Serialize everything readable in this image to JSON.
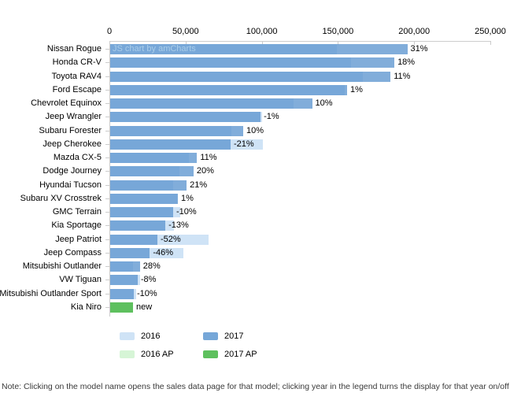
{
  "watermark": "JS chart by amCharts",
  "note": "Note: Clicking on the model name opens the sales data page for that model; clicking year in the legend turns the display for that year on/off",
  "colors": {
    "y2016": "#cfe3f6",
    "y2017": "#76a7d8",
    "y2016ap": "#d6f5d6",
    "y2017ap": "#5ec05e",
    "axis": "#cccccc",
    "watermark_text": "#a9cde9"
  },
  "legend": {
    "position": "bottom",
    "items": [
      {
        "label": "2016",
        "color": "#cfe3f6"
      },
      {
        "label": "2017",
        "color": "#76a7d8"
      },
      {
        "label": "2016 AP",
        "color": "#d6f5d6"
      },
      {
        "label": "2017 AP",
        "color": "#5ec05e"
      }
    ]
  },
  "chart_data": {
    "type": "bar",
    "orientation": "horizontal",
    "title": "",
    "xlabel": "",
    "ylabel": "",
    "axis_position": "top",
    "xlim": [
      0,
      250000
    ],
    "x_tick_interval": 50000,
    "x_tick_labels": [
      "0",
      "50,000",
      "100,000",
      "150,000",
      "200,000",
      "250,000"
    ],
    "grid": false,
    "categories": [
      "Nissan Rogue",
      "Honda CR-V",
      "Toyota RAV4",
      "Ford Escape",
      "Chevrolet Equinox",
      "Jeep Wrangler",
      "Subaru Forester",
      "Jeep Cherokee",
      "Mazda CX-5",
      "Dodge Journey",
      "Hyundai Tucson",
      "Subaru XV Crosstrek",
      "GMC Terrain",
      "Kia Sportage",
      "Jeep Patriot",
      "Jeep Compass",
      "Mitsubishi Outlander",
      "VW Tiguan",
      "Mitsubishi Outlander Sport",
      "Kia Niro"
    ],
    "series": [
      {
        "name": "2016",
        "values": [
          149000,
          158000,
          166000,
          154000,
          120500,
          99500,
          79400,
          100000,
          51400,
          45600,
          41500,
          44000,
          45900,
          41600,
          64500,
          48100,
          15200,
          19600,
          17200,
          null
        ]
      },
      {
        "name": "2017",
        "values": [
          195000,
          186500,
          184000,
          155500,
          132500,
          98700,
          87300,
          79000,
          57000,
          54700,
          50200,
          44400,
          41300,
          36200,
          31000,
          26000,
          19500,
          18000,
          15500,
          null
        ]
      },
      {
        "name": "2016 AP",
        "values": [
          null,
          null,
          null,
          null,
          null,
          null,
          null,
          null,
          null,
          null,
          null,
          null,
          null,
          null,
          null,
          null,
          null,
          null,
          null,
          null
        ]
      },
      {
        "name": "2017 AP",
        "values": [
          null,
          null,
          null,
          null,
          null,
          null,
          null,
          null,
          null,
          null,
          null,
          null,
          null,
          null,
          null,
          null,
          null,
          null,
          null,
          15000
        ]
      }
    ],
    "bar_labels": [
      "31%",
      "18%",
      "11%",
      "1%",
      "10%",
      "-1%",
      "10%",
      "-21%",
      "11%",
      "20%",
      "21%",
      "1%",
      "-10%",
      "-13%",
      "-52%",
      "-46%",
      "28%",
      "-8%",
      "-10%",
      "new"
    ]
  }
}
